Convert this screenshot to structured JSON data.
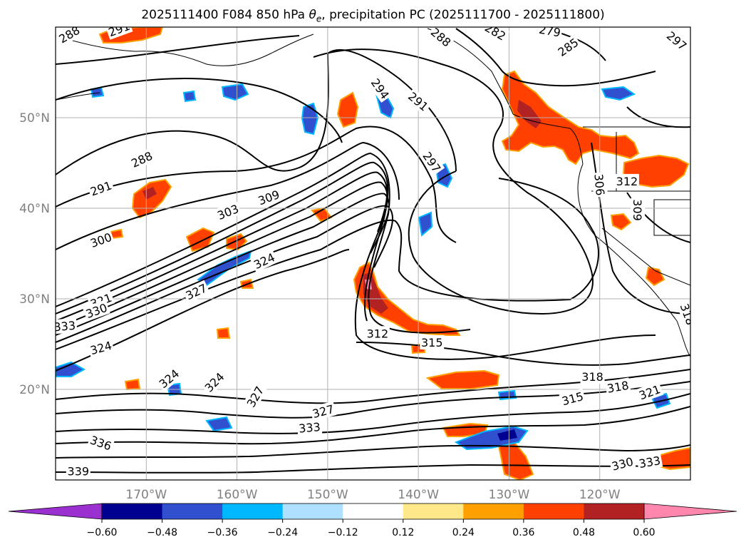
{
  "title": {
    "prefix": "2025111400 F084 850 hPa ",
    "theta_symbol": "θ",
    "theta_sub": "e",
    "suffix": ", precipitation PC (2025111700 - 2025111800)"
  },
  "map": {
    "lon_range": [
      -180,
      -110
    ],
    "lat_range": [
      10,
      60
    ],
    "lon_ticks": [
      {
        "value": -170,
        "label": "170°W"
      },
      {
        "value": -160,
        "label": "160°W"
      },
      {
        "value": -150,
        "label": "150°W"
      },
      {
        "value": -140,
        "label": "140°W"
      },
      {
        "value": -130,
        "label": "130°W"
      },
      {
        "value": -120,
        "label": "120°W"
      }
    ],
    "lat_ticks": [
      {
        "value": 20,
        "label": "20°N"
      },
      {
        "value": 30,
        "label": "30°N"
      },
      {
        "value": 40,
        "label": "40°N"
      },
      {
        "value": 50,
        "label": "50°N"
      }
    ],
    "grid": true
  },
  "contour_labels": [
    {
      "text": "288",
      "lon": -178.5,
      "lat": 59.2,
      "rot": -30
    },
    {
      "text": "291",
      "lon": -173,
      "lat": 59.8,
      "rot": -20
    },
    {
      "text": "288",
      "lon": -170.5,
      "lat": 45.4,
      "rot": -25
    },
    {
      "text": "291",
      "lon": -175,
      "lat": 42.2,
      "rot": -20
    },
    {
      "text": "300",
      "lon": -175,
      "lat": 36.5,
      "rot": -20
    },
    {
      "text": "303",
      "lon": -161,
      "lat": 39.6,
      "rot": -22
    },
    {
      "text": "309",
      "lon": -156.5,
      "lat": 41.2,
      "rot": -20
    },
    {
      "text": "324",
      "lon": -157,
      "lat": 34.2,
      "rot": -25
    },
    {
      "text": "327",
      "lon": -164.5,
      "lat": 30.8,
      "rot": -25
    },
    {
      "text": "321",
      "lon": -175,
      "lat": 29.8,
      "rot": -20
    },
    {
      "text": "330",
      "lon": -175.5,
      "lat": 28.7,
      "rot": -20
    },
    {
      "text": "324",
      "lon": -175,
      "lat": 24.6,
      "rot": -15
    },
    {
      "text": "333",
      "lon": -179,
      "lat": 27.0,
      "rot": -5
    },
    {
      "text": "324",
      "lon": -167.5,
      "lat": 21.2,
      "rot": -40
    },
    {
      "text": "324",
      "lon": -162.5,
      "lat": 20.8,
      "rot": -45
    },
    {
      "text": "327",
      "lon": -158,
      "lat": 19.2,
      "rot": -60
    },
    {
      "text": "327",
      "lon": -150.5,
      "lat": 17.6,
      "rot": -15
    },
    {
      "text": "333",
      "lon": -152,
      "lat": 15.8,
      "rot": -5
    },
    {
      "text": "336",
      "lon": -175,
      "lat": 14.1,
      "rot": 20
    },
    {
      "text": "339",
      "lon": -177.5,
      "lat": 11.0,
      "rot": 0
    },
    {
      "text": "312",
      "lon": -144.5,
      "lat": 26.2,
      "rot": 0
    },
    {
      "text": "315",
      "lon": -138.5,
      "lat": 25.2,
      "rot": 0
    },
    {
      "text": "294",
      "lon": -144.2,
      "lat": 53.2,
      "rot": 55
    },
    {
      "text": "291",
      "lon": -140,
      "lat": 51.8,
      "rot": 40
    },
    {
      "text": "297",
      "lon": -138.5,
      "lat": 45.1,
      "rot": 55
    },
    {
      "text": "288",
      "lon": -137.5,
      "lat": 58.9,
      "rot": 40
    },
    {
      "text": "282",
      "lon": -131.5,
      "lat": 59.5,
      "rot": 30
    },
    {
      "text": "279",
      "lon": -125.5,
      "lat": 59.6,
      "rot": 10
    },
    {
      "text": "285",
      "lon": -123.5,
      "lat": 57.8,
      "rot": -35
    },
    {
      "text": "297",
      "lon": -111.5,
      "lat": 58.5,
      "rot": 40
    },
    {
      "text": "306",
      "lon": -120,
      "lat": 42.6,
      "rot": 85
    },
    {
      "text": "312",
      "lon": -117,
      "lat": 43.0,
      "rot": 0
    },
    {
      "text": "309",
      "lon": -115.8,
      "lat": 39.8,
      "rot": 90
    },
    {
      "text": "318",
      "lon": -120.8,
      "lat": 21.4,
      "rot": 0
    },
    {
      "text": "318",
      "lon": -118,
      "lat": 20.3,
      "rot": -10
    },
    {
      "text": "315",
      "lon": -123,
      "lat": 19.0,
      "rot": -15
    },
    {
      "text": "321",
      "lon": -114.5,
      "lat": 19.7,
      "rot": -20
    },
    {
      "text": "330",
      "lon": -117.5,
      "lat": 11.8,
      "rot": -15
    },
    {
      "text": "333",
      "lon": -114.5,
      "lat": 12.0,
      "rot": -10
    },
    {
      "text": "318",
      "lon": -110.3,
      "lat": 28.3,
      "rot": 70
    }
  ],
  "colorbar": {
    "levels": [
      -0.6,
      -0.48,
      -0.36,
      -0.24,
      -0.12,
      0.12,
      0.24,
      0.36,
      0.48,
      0.6
    ],
    "tick_labels": [
      "−0.60",
      "−0.48",
      "−0.36",
      "−0.24",
      "−0.12",
      "0.12",
      "0.24",
      "0.36",
      "0.48",
      "0.60"
    ],
    "under_color": "#9b30d0",
    "over_color": "#ff86ad",
    "colors": [
      "#000090",
      "#3050d0",
      "#00b8ff",
      "#b0e0ff",
      "#ffffff",
      "#ffe88a",
      "#ffa000",
      "#ff4000",
      "#b22222"
    ]
  },
  "precip_colors": {
    "orange": "#ff4000",
    "yellow": "#ffe88a",
    "amber": "#ffa000",
    "red": "#b22222",
    "pink": "#ff86ad",
    "lightblue": "#b0e0ff",
    "blue": "#3050d0",
    "navy": "#000090",
    "cyan": "#00b8ff"
  }
}
